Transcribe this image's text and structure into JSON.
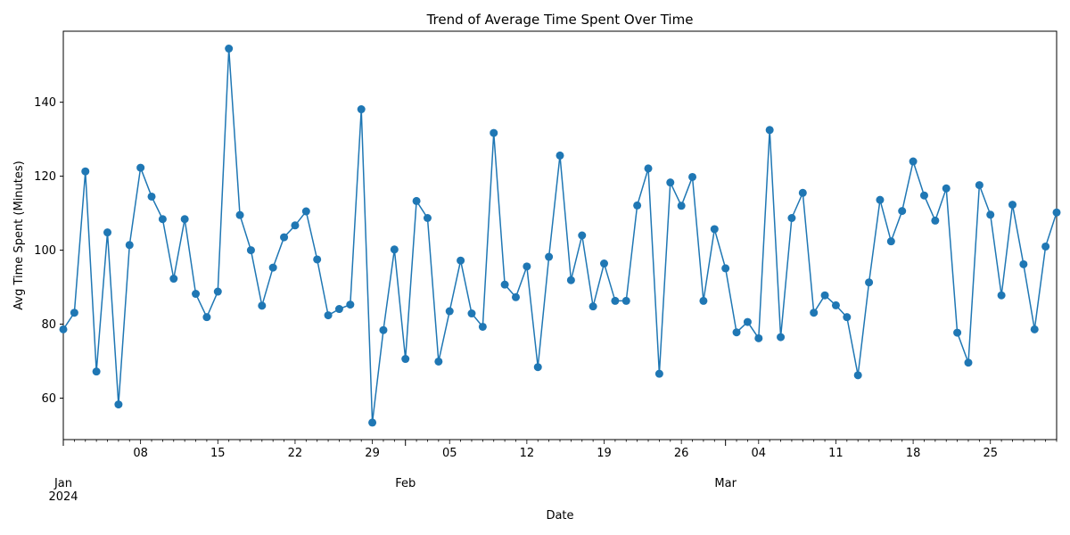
{
  "chart_data": {
    "type": "line",
    "title": "Trend of Average Time Spent Over Time",
    "xlabel": "Date",
    "ylabel": "Avg Time Spent (Minutes)",
    "ylim": [
      48.8,
      159.2
    ],
    "xlim": [
      "2024-01-01",
      "2024-03-31"
    ],
    "grid": false,
    "marker": "circle",
    "color": "#1f77b4",
    "y_ticks": [
      60,
      80,
      100,
      120,
      140
    ],
    "x_minor_ticks": [
      "08",
      "15",
      "22",
      "29",
      "05",
      "12",
      "19",
      "26",
      "04",
      "11",
      "18",
      "25"
    ],
    "x_month_labels": [
      {
        "month": "Jan",
        "year": "2024"
      },
      {
        "month": "Feb",
        "year": ""
      },
      {
        "month": "Mar",
        "year": ""
      }
    ],
    "series": [
      {
        "name": "",
        "start": "2024-01-01",
        "frequency": "daily",
        "values": [
          78.6,
          83.1,
          121.3,
          67.2,
          104.8,
          58.3,
          101.4,
          122.3,
          114.5,
          108.4,
          92.3,
          108.4,
          88.2,
          81.9,
          88.8,
          154.5,
          109.5,
          100.0,
          85.0,
          95.3,
          103.5,
          106.7,
          110.5,
          97.5,
          82.4,
          84.1,
          85.3,
          138.1,
          53.4,
          78.4,
          100.2,
          70.6,
          113.3,
          108.7,
          69.9,
          83.5,
          97.2,
          82.9,
          79.3,
          131.7,
          90.7,
          87.3,
          95.6,
          68.4,
          98.2,
          125.6,
          91.9,
          104.0,
          84.8,
          96.4,
          86.3,
          86.3,
          112.1,
          122.1,
          66.6,
          118.3,
          112.0,
          119.8,
          86.3,
          105.7,
          95.1,
          77.8,
          80.6,
          76.2,
          132.5,
          76.5,
          108.7,
          115.5,
          83.1,
          87.8,
          85.1,
          81.9,
          66.2,
          91.3,
          113.6,
          102.4,
          110.6,
          124.0,
          114.8,
          108.0,
          116.7,
          77.7,
          69.6,
          117.6,
          109.6,
          87.8,
          112.3,
          96.2,
          78.6,
          101.0,
          110.2
        ]
      }
    ]
  }
}
